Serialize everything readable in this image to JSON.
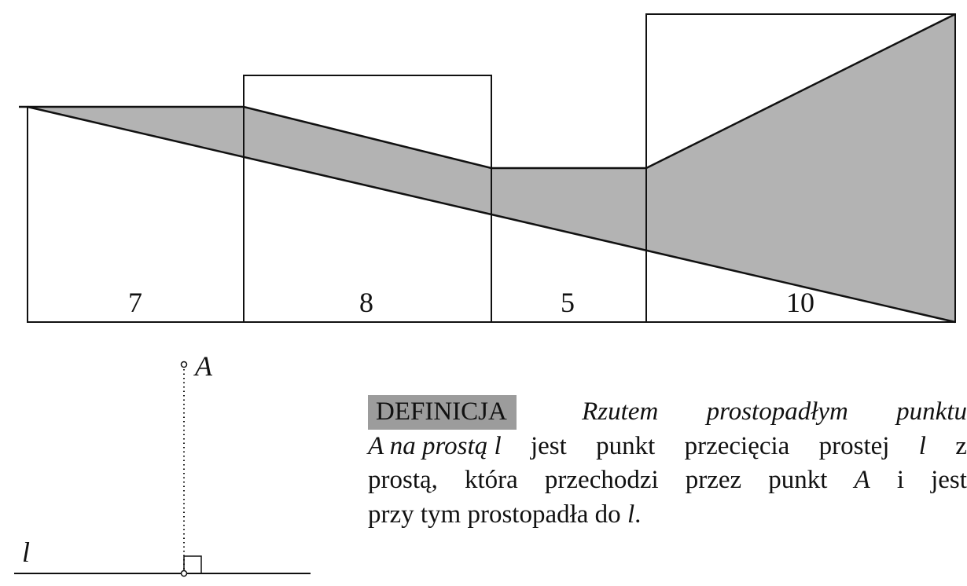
{
  "figure": {
    "segments": [
      {
        "label": "7"
      },
      {
        "label": "8"
      },
      {
        "label": "5"
      },
      {
        "label": "10"
      }
    ],
    "point_label": "A",
    "line_label": "l"
  },
  "definition": {
    "badge": "DEFINICJA",
    "line1_words": [
      "Rzutem",
      "prostopadłym",
      "punktu"
    ],
    "line2": {
      "italic": "A na prostą l",
      "words": [
        "jest",
        "punkt",
        "przecięcia",
        "prostej"
      ],
      "l_var": "l",
      "z": "z"
    },
    "line3": {
      "before": [
        "prostą,",
        "która",
        "przechodzi",
        "przez",
        "punkt"
      ],
      "a_var": "A",
      "after": [
        "i",
        "jest"
      ]
    },
    "line4": {
      "text": "przy tym prostopadła do",
      "l_var": "l",
      "end": "."
    }
  },
  "colors": {
    "shade": "#b3b3b3",
    "badge": "#9c9c9c",
    "stroke": "#111111"
  }
}
